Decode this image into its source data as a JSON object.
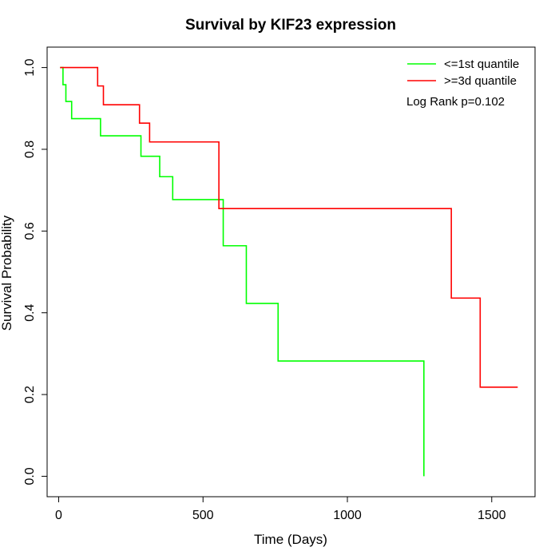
{
  "chart_data": {
    "type": "line",
    "title": "Survival by KIF23 expression",
    "xlabel": "Time (Days)",
    "ylabel": "Survival Probability",
    "xlim": [
      -40,
      1650
    ],
    "ylim": [
      -0.05,
      1.05
    ],
    "xticks": [
      0,
      500,
      1000,
      1500
    ],
    "yticks": [
      0.0,
      0.2,
      0.4,
      0.6,
      0.8,
      1.0
    ],
    "xtick_labels": [
      "0",
      "500",
      "1000",
      "1500"
    ],
    "ytick_labels": [
      "0.0",
      "0.2",
      "0.4",
      "0.6",
      "0.8",
      "1.0"
    ],
    "grid": false,
    "legend_position": "top-right",
    "annotation": "Log Rank p=0.102",
    "series": [
      {
        "name": "<=1st quantile",
        "color": "#00ff00",
        "step": true,
        "x": [
          5,
          15,
          25,
          45,
          145,
          285,
          350,
          395,
          570,
          650,
          760,
          1265,
          1265
        ],
        "y": [
          1.0,
          0.958,
          0.917,
          0.875,
          0.833,
          0.783,
          0.733,
          0.677,
          0.564,
          0.423,
          0.282,
          0.282,
          0.0
        ]
      },
      {
        "name": ">=3d quantile",
        "color": "#ff0000",
        "step": true,
        "x": [
          5,
          135,
          155,
          280,
          315,
          555,
          1360,
          1460,
          1590
        ],
        "y": [
          1.0,
          0.955,
          0.909,
          0.864,
          0.818,
          0.655,
          0.436,
          0.218,
          0.218
        ]
      }
    ]
  }
}
